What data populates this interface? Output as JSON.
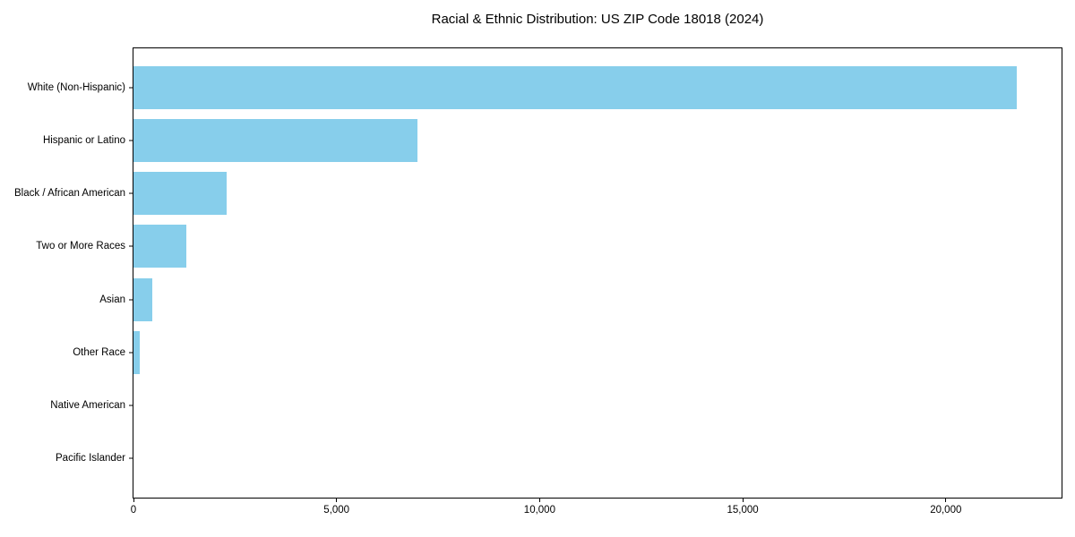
{
  "title": "Racial & Ethnic Distribution: US ZIP Code 18018 (2024)",
  "chart_data": {
    "type": "bar",
    "orientation": "horizontal",
    "title": "Racial & Ethnic Distribution: US ZIP Code 18018 (2024)",
    "categories": [
      "White (Non-Hispanic)",
      "Hispanic or Latino",
      "Black / African American",
      "Two or More Races",
      "Asian",
      "Other Race",
      "Native American",
      "Pacific Islander"
    ],
    "values": [
      21750,
      7000,
      2300,
      1300,
      460,
      150,
      0,
      0
    ],
    "xlabel": "",
    "ylabel": "",
    "xlim": [
      0,
      22850
    ],
    "xticks": {
      "values": [
        0,
        5000,
        10000,
        15000,
        20000
      ],
      "labels": [
        "0",
        "5,000",
        "10,000",
        "15,000",
        "20,000"
      ]
    },
    "bar_color": "#87CEEB",
    "grid": false,
    "legend_position": "none",
    "plot_background": "#ffffff",
    "spine_color": "#000000"
  }
}
